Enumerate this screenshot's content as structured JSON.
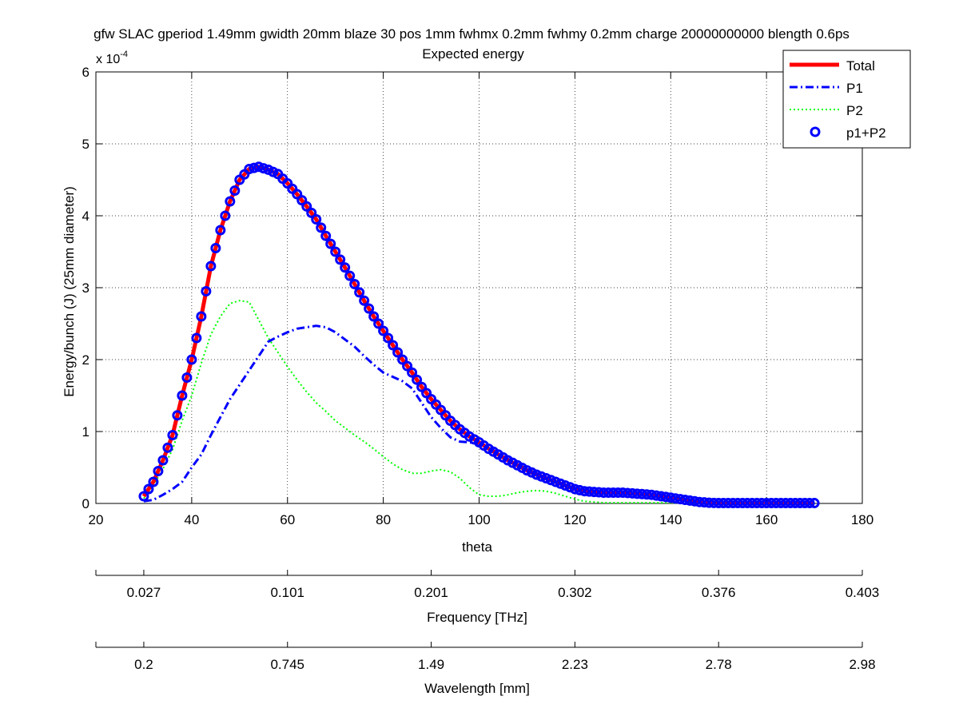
{
  "chart_data": {
    "type": "line",
    "title": "gfw SLAC gperiod 1.49mm gwidth 20mm blaze 30 pos 1mm fwhmx 0.2mm fwhmy 0.2mm charge 20000000000 blength 0.6ps",
    "subtitle": "Expected energy",
    "xlabel": "theta",
    "ylabel": "Energy/bunch (J) (25mm diameter)",
    "y_exponent_label": "x 10",
    "y_exponent_power": "-4",
    "xlim": [
      20,
      180
    ],
    "ylim": [
      0,
      6
    ],
    "x_ticks": [
      "20",
      "40",
      "60",
      "80",
      "100",
      "120",
      "140",
      "160",
      "180"
    ],
    "y_ticks": [
      "0",
      "1",
      "2",
      "3",
      "4",
      "5",
      "6"
    ],
    "grid": true,
    "legend_position": "top-right",
    "series": [
      {
        "name": "Total",
        "color": "#ff0000",
        "style": "solid",
        "x": [
          30,
          32,
          34,
          36,
          38,
          40,
          42,
          44,
          46,
          48,
          50,
          52,
          54,
          56,
          58,
          60,
          62,
          64,
          66,
          68,
          70,
          72,
          74,
          76,
          78,
          80,
          82,
          84,
          86,
          88,
          90,
          92,
          94,
          96,
          98,
          100,
          102,
          104,
          106,
          108,
          110,
          112,
          114,
          116,
          118,
          120,
          122,
          124,
          126,
          128,
          130,
          132,
          134,
          136,
          138,
          140,
          142,
          144,
          146,
          148,
          150,
          152,
          154,
          156,
          158,
          160,
          162,
          164,
          166,
          168,
          170
        ],
        "y": [
          0.1,
          0.3,
          0.6,
          0.95,
          1.5,
          2.0,
          2.6,
          3.3,
          3.8,
          4.2,
          4.5,
          4.65,
          4.68,
          4.64,
          4.58,
          4.45,
          4.3,
          4.13,
          3.95,
          3.72,
          3.5,
          3.28,
          3.05,
          2.82,
          2.6,
          2.4,
          2.2,
          2.0,
          1.82,
          1.62,
          1.45,
          1.3,
          1.15,
          1.03,
          0.93,
          0.85,
          0.76,
          0.68,
          0.6,
          0.53,
          0.46,
          0.4,
          0.35,
          0.3,
          0.25,
          0.2,
          0.17,
          0.16,
          0.15,
          0.15,
          0.15,
          0.14,
          0.13,
          0.12,
          0.1,
          0.08,
          0.06,
          0.04,
          0.02,
          0.01,
          0.005,
          0.005,
          0.005,
          0.005,
          0.005,
          0.005,
          0.005,
          0.005,
          0.005,
          0.005,
          0.005
        ]
      },
      {
        "name": "P1",
        "color": "#0000ff",
        "style": "dashdot",
        "x": [
          30,
          32,
          34,
          36,
          38,
          40,
          42,
          44,
          46,
          48,
          50,
          52,
          54,
          56,
          58,
          60,
          62,
          64,
          66,
          68,
          70,
          72,
          74,
          76,
          78,
          80,
          82,
          84,
          86,
          88,
          90,
          92,
          94,
          96,
          98,
          100,
          102,
          104,
          106,
          108,
          110,
          112,
          114,
          116,
          118,
          120,
          122,
          124,
          126,
          128,
          130,
          132,
          134,
          136,
          138,
          140,
          142,
          144,
          146,
          148,
          150,
          152,
          154,
          156,
          158,
          160,
          162,
          164,
          166,
          168,
          170
        ],
        "y": [
          0.03,
          0.05,
          0.12,
          0.2,
          0.3,
          0.5,
          0.68,
          0.95,
          1.2,
          1.45,
          1.65,
          1.85,
          2.05,
          2.25,
          2.32,
          2.38,
          2.43,
          2.45,
          2.47,
          2.45,
          2.38,
          2.28,
          2.18,
          2.05,
          1.93,
          1.82,
          1.76,
          1.7,
          1.6,
          1.4,
          1.2,
          1.05,
          0.92,
          0.86,
          0.85,
          0.83,
          0.78,
          0.7,
          0.62,
          0.55,
          0.48,
          0.42,
          0.36,
          0.3,
          0.26,
          0.21,
          0.18,
          0.17,
          0.16,
          0.15,
          0.15,
          0.15,
          0.14,
          0.13,
          0.12,
          0.1,
          0.07,
          0.05,
          0.03,
          0.02,
          0.01,
          0.01,
          0.01,
          0.01,
          0.01,
          0.01,
          0.01,
          0.01,
          0.01,
          0.01,
          0.01
        ]
      },
      {
        "name": "P2",
        "color": "#00ff00",
        "style": "dotted",
        "x": [
          30,
          32,
          34,
          36,
          38,
          40,
          42,
          44,
          46,
          48,
          50,
          52,
          54,
          56,
          58,
          60,
          62,
          64,
          66,
          68,
          70,
          72,
          74,
          76,
          78,
          80,
          82,
          84,
          86,
          88,
          90,
          92,
          94,
          96,
          98,
          100,
          102,
          104,
          106,
          108,
          110,
          112,
          114,
          116,
          118,
          120,
          122,
          124,
          126,
          128,
          130,
          132,
          134,
          136,
          138,
          140,
          142,
          144,
          146,
          148,
          150,
          152,
          154,
          156,
          158,
          160,
          162,
          164,
          166,
          168,
          170
        ],
        "y": [
          0.07,
          0.25,
          0.48,
          0.75,
          1.15,
          1.5,
          1.95,
          2.35,
          2.6,
          2.78,
          2.82,
          2.8,
          2.55,
          2.3,
          2.1,
          1.9,
          1.72,
          1.55,
          1.4,
          1.28,
          1.15,
          1.05,
          0.95,
          0.86,
          0.76,
          0.65,
          0.55,
          0.47,
          0.42,
          0.42,
          0.45,
          0.47,
          0.44,
          0.35,
          0.22,
          0.12,
          0.1,
          0.1,
          0.12,
          0.15,
          0.17,
          0.18,
          0.17,
          0.14,
          0.1,
          0.06,
          0.03,
          0.02,
          0.01,
          0.01,
          0.01,
          0.01,
          0.01,
          0.01,
          0.01,
          0.01,
          0.01,
          0.01,
          0.01,
          0.01,
          0.005,
          0.005,
          0.005,
          0.005,
          0.005,
          0.005,
          0.005,
          0.005,
          0.005,
          0.005,
          0.005
        ]
      },
      {
        "name": "p1+P2",
        "color": "#0000ff",
        "style": "circle-markers",
        "marker_step": 1
      }
    ],
    "secondary_axes": [
      {
        "label": "Frequency [THz]",
        "ticks": [
          {
            "x": 30,
            "label": "0.027"
          },
          {
            "x": 60,
            "label": "0.101"
          },
          {
            "x": 90,
            "label": "0.201"
          },
          {
            "x": 120,
            "label": "0.302"
          },
          {
            "x": 150,
            "label": "0.376"
          },
          {
            "x": 180,
            "label": "0.403"
          }
        ]
      },
      {
        "label": "Wavelength [mm]",
        "ticks": [
          {
            "x": 30,
            "label": "0.2"
          },
          {
            "x": 60,
            "label": "0.745"
          },
          {
            "x": 90,
            "label": "1.49"
          },
          {
            "x": 120,
            "label": "2.23"
          },
          {
            "x": 150,
            "label": "2.78"
          },
          {
            "x": 180,
            "label": "2.98"
          }
        ]
      }
    ]
  }
}
